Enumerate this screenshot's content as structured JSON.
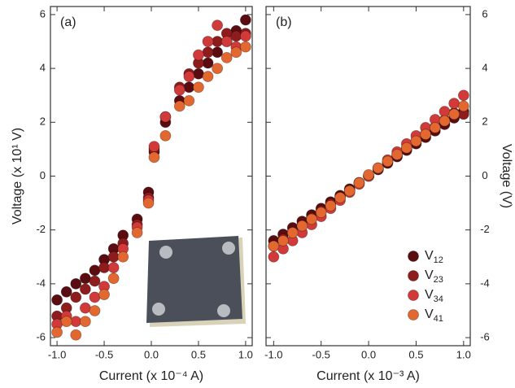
{
  "chart_data": [
    {
      "type": "scatter",
      "label": "(a)",
      "x_label": "Current  (x 10⁻⁴ A)",
      "y_label": "Voltage (x 10¹ V)",
      "y_axis_side": "left",
      "x": [
        -1.0,
        -0.9,
        -0.8,
        -0.7,
        -0.6,
        -0.5,
        -0.4,
        -0.3,
        -0.15,
        -0.03,
        0.03,
        0.15,
        0.3,
        0.4,
        0.5,
        0.6,
        0.7,
        0.8,
        0.9,
        1.0
      ],
      "series": [
        {
          "color": "#5a0c10",
          "values": [
            -4.6,
            -4.3,
            -4.0,
            -3.8,
            -3.5,
            -3.1,
            -2.7,
            -2.2,
            -1.6,
            -0.6,
            0.9,
            2.0,
            2.8,
            3.3,
            3.8,
            4.2,
            4.6,
            5.0,
            5.4,
            5.8
          ]
        },
        {
          "color": "#8e1c1c",
          "values": [
            -5.2,
            -4.9,
            -4.5,
            -4.2,
            -3.9,
            -3.4,
            -3.0,
            -2.5,
            -1.8,
            -0.8,
            1.0,
            2.2,
            3.3,
            3.8,
            4.2,
            4.6,
            5.0,
            5.3,
            5.2,
            5.3
          ]
        },
        {
          "color": "#d23a3a",
          "values": [
            -5.5,
            -5.2,
            -5.4,
            -4.9,
            -4.5,
            -4.1,
            -3.4,
            -2.7,
            -1.9,
            -0.9,
            1.1,
            2.2,
            3.2,
            3.7,
            4.5,
            5.0,
            5.6,
            5.0,
            4.8,
            5.2
          ]
        },
        {
          "color": "#e26830",
          "values": [
            -5.8,
            -5.4,
            -5.9,
            -5.4,
            -5.0,
            -4.4,
            -3.8,
            -3.0,
            -2.1,
            -1.0,
            0.7,
            1.5,
            2.6,
            2.8,
            3.3,
            3.7,
            4.0,
            4.4,
            4.6,
            4.8
          ]
        }
      ],
      "xlim": [
        -1.07,
        1.07
      ],
      "ylim": [
        -6.3,
        6.3
      ],
      "xticks": [
        {
          "value": -1,
          "label": "-1.0"
        },
        -0.5,
        {
          "value": 0,
          "label": "0.0"
        },
        0.5,
        {
          "value": 1,
          "label": "1.0"
        }
      ],
      "yticks": [
        -6,
        -4,
        -2,
        0,
        2,
        4,
        6
      ],
      "grid": false
    },
    {
      "type": "scatter",
      "label": "(b)",
      "x_label": "Current  (x 10⁻³ A)",
      "y_label": "Voltage (V)",
      "y_axis_side": "right",
      "legend": "lower right",
      "x": [
        -1.0,
        -0.9,
        -0.8,
        -0.7,
        -0.6,
        -0.5,
        -0.4,
        -0.3,
        -0.2,
        -0.1,
        0.0,
        0.1,
        0.2,
        0.3,
        0.4,
        0.5,
        0.6,
        0.7,
        0.8,
        0.9,
        1.0
      ],
      "series": [
        {
          "name": "V12",
          "color": "#5a0c10",
          "values": [
            -2.4,
            -2.16,
            -1.92,
            -1.68,
            -1.44,
            -1.2,
            -0.96,
            -0.72,
            -0.48,
            -0.24,
            0,
            0.24,
            0.48,
            0.72,
            0.96,
            1.2,
            1.44,
            1.68,
            1.92,
            2.16,
            2.4
          ]
        },
        {
          "name": "V23",
          "color": "#8e1c1c",
          "values": [
            -2.6,
            -2.34,
            -2.08,
            -1.82,
            -1.56,
            -1.3,
            -1.04,
            -0.78,
            -0.52,
            -0.26,
            0,
            0.26,
            0.52,
            0.78,
            1.04,
            1.3,
            1.56,
            1.82,
            2.08,
            2.34,
            2.3
          ]
        },
        {
          "name": "V34",
          "color": "#d23a3a",
          "values": [
            -3.0,
            -2.7,
            -2.4,
            -2.1,
            -1.8,
            -1.5,
            -1.2,
            -0.9,
            -0.6,
            -0.3,
            0,
            0.3,
            0.6,
            0.9,
            1.2,
            1.5,
            1.8,
            2.1,
            2.4,
            2.7,
            3.0
          ]
        },
        {
          "name": "V41",
          "color": "#e26830",
          "values": [
            -2.6,
            -2.4,
            -2.1,
            -1.85,
            -1.6,
            -1.35,
            -1.1,
            -0.8,
            -0.55,
            -0.25,
            0.05,
            0.3,
            0.55,
            0.8,
            1.05,
            1.3,
            1.55,
            1.8,
            2.05,
            2.3,
            2.6
          ]
        }
      ],
      "xlim": [
        -1.08,
        1.07
      ],
      "ylim": [
        -6.3,
        6.3
      ],
      "xticks": [
        {
          "value": -1,
          "label": "-1.0"
        },
        -0.5,
        {
          "value": 0,
          "label": "0.0"
        },
        0.5,
        {
          "value": 1,
          "label": "1.0"
        }
      ],
      "yticks": [
        -6,
        -4,
        -2,
        0,
        2,
        4,
        6
      ],
      "grid": false
    }
  ]
}
